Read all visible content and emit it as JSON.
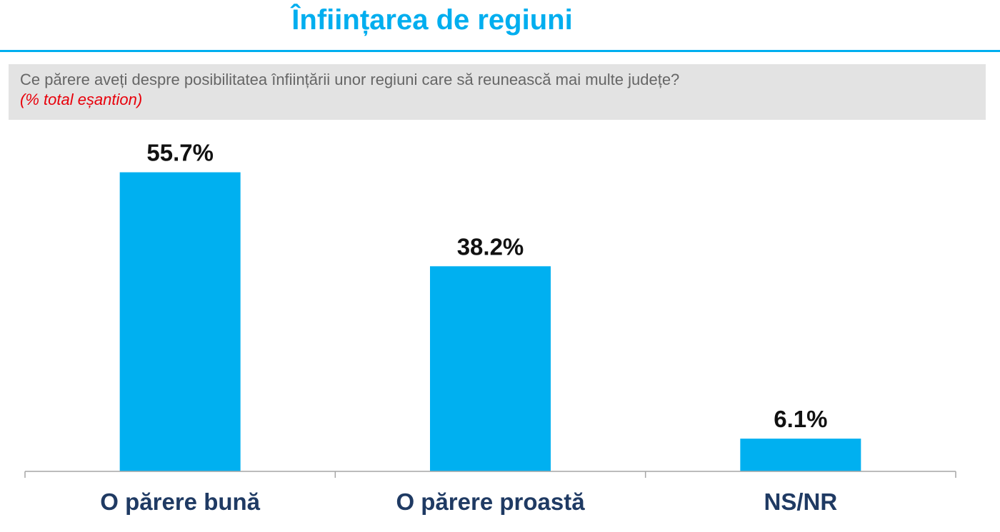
{
  "header": {
    "title": "Înființarea de regiuni"
  },
  "question": {
    "text": "Ce părere aveți despre posibilitatea înființării unor regiuni care să reunească mai multe județe?",
    "note": "(% total eșantion)"
  },
  "colors": {
    "accent": "#00AEEF",
    "bar": "#00B0F0",
    "category_text": "#1F3A63",
    "note_text": "#E8000B",
    "question_box": "#E3E3E3"
  },
  "chart_data": {
    "type": "bar",
    "categories": [
      "O părere bună",
      "O părere proastă",
      "NS/NR"
    ],
    "values": [
      55.7,
      38.2,
      6.1
    ],
    "value_labels": [
      "55.7%",
      "38.2%",
      "6.1%"
    ],
    "ylim": [
      0,
      100
    ],
    "grid": false,
    "legend": "none"
  }
}
